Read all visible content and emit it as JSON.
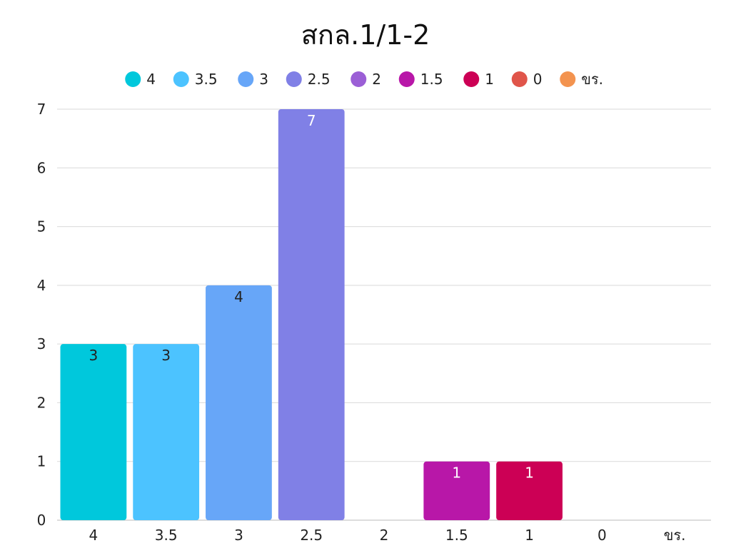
{
  "chart_data": {
    "type": "bar",
    "title": "สกล.1/1-2",
    "xlabel": "",
    "ylabel": "",
    "categories": [
      "4",
      "3.5",
      "3",
      "2.5",
      "2",
      "1.5",
      "1",
      "0",
      "ขร."
    ],
    "values": [
      3,
      3,
      4,
      7,
      0,
      1,
      1,
      0,
      0
    ],
    "colors": [
      "#00C8DC",
      "#4CC3FF",
      "#67A6F8",
      "#8080E6",
      "#9B5FD6",
      "#B817A8",
      "#CC0055",
      "#E0554A",
      "#F3934F"
    ],
    "data_label_colors": [
      "#222222",
      "#222222",
      "#222222",
      "#ffffff",
      "#ffffff",
      "#ffffff",
      "#ffffff",
      "#ffffff",
      "#ffffff"
    ],
    "ylim": [
      0,
      7
    ],
    "yticks": [
      0,
      1,
      2,
      3,
      4,
      5,
      6,
      7
    ],
    "grid": true,
    "legend_position": "top",
    "legend": [
      "4",
      "3.5",
      "3",
      "2.5",
      "2",
      "1.5",
      "1",
      "0",
      "ขร."
    ]
  }
}
